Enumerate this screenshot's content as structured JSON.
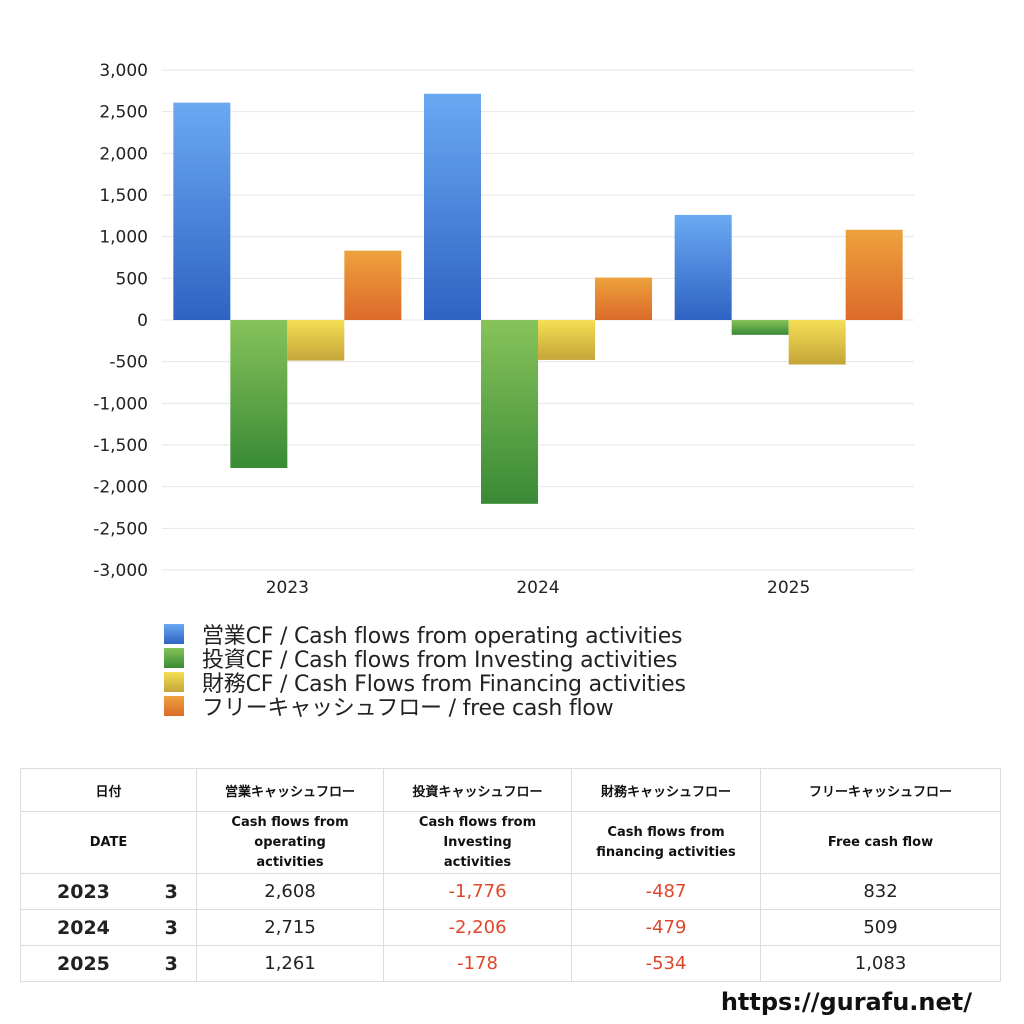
{
  "chart_data": {
    "type": "bar",
    "categories": [
      "2023",
      "2024",
      "2025"
    ],
    "ylim": [
      -3000,
      3000
    ],
    "yticks": [
      3000,
      2500,
      2000,
      1500,
      1000,
      500,
      0,
      -500,
      -1000,
      -1500,
      -2000,
      -2500,
      -3000
    ],
    "ytick_labels": [
      "3,000",
      "2,500",
      "2,000",
      "1,500",
      "1,000",
      "500",
      "0",
      "-500",
      "-1,000",
      "-1,500",
      "-2,000",
      "-2,500",
      "-3,000"
    ],
    "grid": true,
    "legend_position": "bottom",
    "series": [
      {
        "name": "営業CF / Cash flows from operating activities",
        "values": [
          2608,
          2715,
          1261
        ],
        "color_top": "#6aa9f2",
        "color_bottom": "#2f63c3"
      },
      {
        "name": "投資CF / Cash flows from Investing activities",
        "values": [
          -1776,
          -2206,
          -178
        ],
        "color_top": "#86c35a",
        "color_bottom": "#3a8a36"
      },
      {
        "name": "財務CF / Cash Flows from Financing activities",
        "values": [
          -487,
          -479,
          -534
        ],
        "color_top": "#f5df55",
        "color_bottom": "#c4a539"
      },
      {
        "name": "フリーキャッシュフロー / free cash flow",
        "values": [
          832,
          509,
          1083
        ],
        "color_top": "#eda23d",
        "color_bottom": "#dc6a2a"
      }
    ]
  },
  "table": {
    "headers_ja": [
      "日付",
      "営業キャッシュフロー",
      "投資キャッシュフロー",
      "財務キャッシュフロー",
      "フリーキャッシュフロー"
    ],
    "headers_en": [
      "DATE",
      "Cash flows from operating activities",
      "Cash flows from Investing activities",
      "Cash flows from financing activities",
      "Free cash flow"
    ],
    "rows": [
      {
        "year": "2023",
        "month": "3",
        "operating": "2,608",
        "investing": "-1,776",
        "financing": "-487",
        "free": "832"
      },
      {
        "year": "2024",
        "month": "3",
        "operating": "2,715",
        "investing": "-2,206",
        "financing": "-479",
        "free": "509"
      },
      {
        "year": "2025",
        "month": "3",
        "operating": "1,261",
        "investing": "-178",
        "financing": "-534",
        "free": "1,083"
      }
    ]
  },
  "footer": {
    "url": "https://gurafu.net/"
  }
}
